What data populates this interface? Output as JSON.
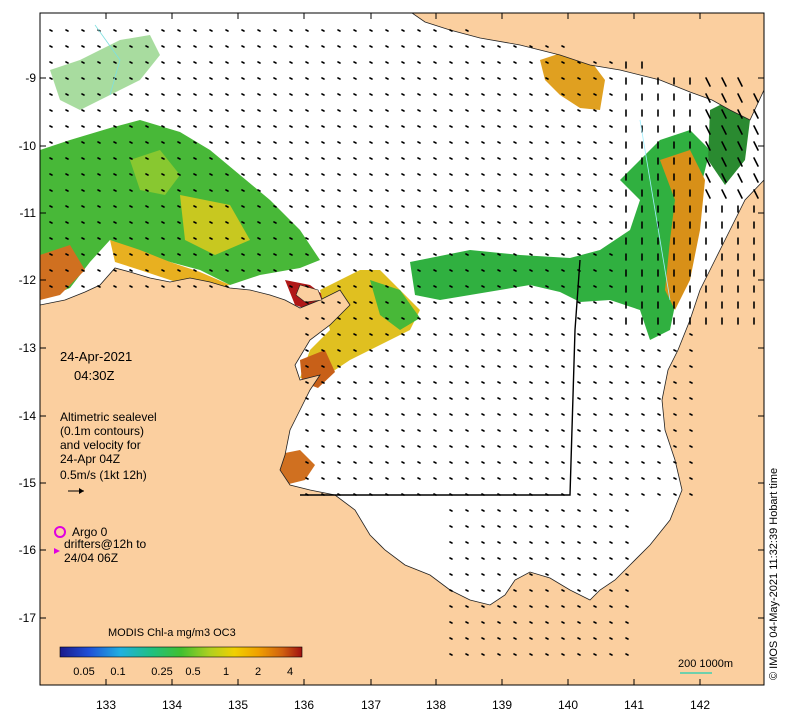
{
  "map": {
    "date_line1": "24-Apr-2021",
    "date_line2": "04:30Z",
    "sealevel_lines": [
      "Altimetric sealevel",
      "(0.1m contours)",
      "and velocity for",
      "24-Apr 04Z",
      "0.5m/s (1kt 12h)"
    ],
    "argo_label": "Argo 0",
    "drifters_line1": "drifters@12h to",
    "drifters_line2": "24/04 06Z",
    "colorbar_title": "MODIS Chl-a mg/m3 OC3",
    "colorbar_ticks": [
      "0.05",
      "0.1",
      "0.25",
      "0.5",
      "1",
      "2",
      "4"
    ],
    "scale_label": "200 1000m",
    "credit": "© IMOS 04-May-2021 11:32:39 Hobart time",
    "x_ticks": [
      "133",
      "134",
      "135",
      "136",
      "137",
      "138",
      "139",
      "140",
      "141",
      "142"
    ],
    "y_ticks": [
      "-9",
      "-10",
      "-11",
      "-12",
      "-13",
      "-14",
      "-15",
      "-16",
      "-17"
    ],
    "colors": {
      "land": "#fbcf9f",
      "sea": "#ffffff",
      "argo_marker": "#e000e0",
      "scale_bar": "#3fd0b0"
    }
  }
}
